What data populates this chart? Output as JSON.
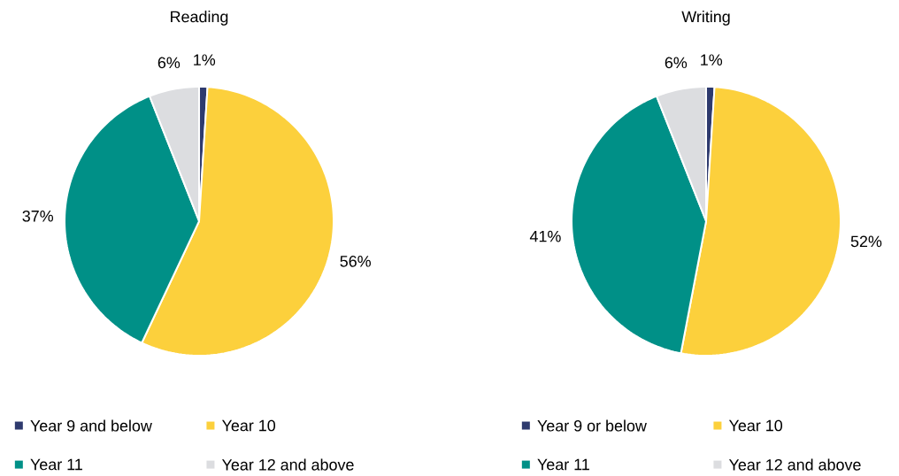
{
  "chart_data": [
    {
      "type": "pie",
      "title": "Reading",
      "categories": [
        "Year 9 and below",
        "Year 10",
        "Year 11",
        "Year 12 and above"
      ],
      "values": [
        1,
        56,
        37,
        6
      ],
      "colors": [
        "#2e3a6e",
        "#fcd03c",
        "#009087",
        "#dcdde0"
      ],
      "value_labels": [
        "1%",
        "56%",
        "37%",
        "6%"
      ],
      "legend": "bottom"
    },
    {
      "type": "pie",
      "title": "Writing",
      "categories": [
        "Year 9 or below",
        "Year 10",
        "Year 11",
        "Year 12 and above"
      ],
      "values": [
        1,
        52,
        41,
        6
      ],
      "colors": [
        "#2e3a6e",
        "#fcd03c",
        "#009087",
        "#dcdde0"
      ],
      "value_labels": [
        "1%",
        "52%",
        "41%",
        "6%"
      ],
      "legend": "bottom"
    }
  ]
}
